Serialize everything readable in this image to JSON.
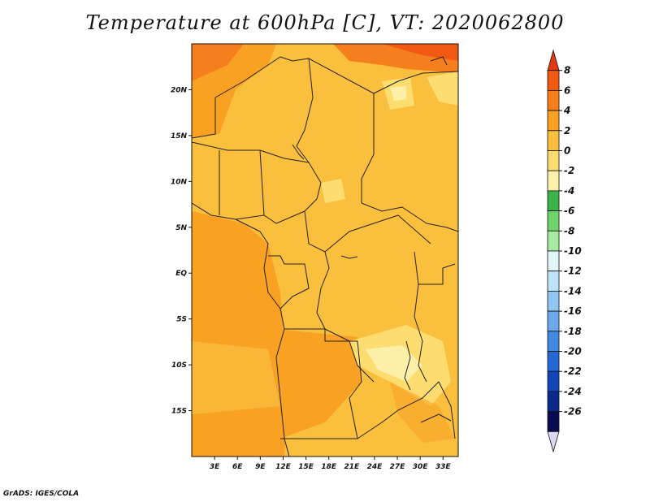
{
  "title": "Temperature at 600hPa [C], VT: 2020062800",
  "credit": "GrADS: IGES/COLA",
  "map": {
    "lon_range": [
      0,
      35
    ],
    "lat_range": [
      -20,
      25
    ],
    "x_ticks": [
      "3E",
      "6E",
      "9E",
      "12E",
      "15E",
      "18E",
      "21E",
      "24E",
      "27E",
      "30E",
      "33E"
    ],
    "x_tick_values": [
      3,
      6,
      9,
      12,
      15,
      18,
      21,
      24,
      27,
      30,
      33
    ],
    "y_ticks": [
      "20N",
      "15N",
      "10N",
      "5N",
      "EQ",
      "5S",
      "10S",
      "15S"
    ],
    "y_tick_values": [
      20,
      15,
      10,
      5,
      0,
      -5,
      -10,
      -15
    ]
  },
  "colorbar": {
    "labels": [
      "8",
      "6",
      "4",
      "2",
      "0",
      "-2",
      "-4",
      "-6",
      "-8",
      "-10",
      "-12",
      "-14",
      "-16",
      "-18",
      "-20",
      "-22",
      "-24",
      "-26"
    ],
    "colors": [
      "#e03a10",
      "#f25a14",
      "#f57f1c",
      "#f8a122",
      "#fbbf3e",
      "#fddc70",
      "#fef0a8",
      "#3ab34a",
      "#6fd36a",
      "#a8eaa0",
      "#e2f6f8",
      "#bde3f8",
      "#92c6f2",
      "#6aa8ea",
      "#4489e0",
      "#2468d4",
      "#1046b8",
      "#0a2a8a",
      "#0a0a50",
      "#dcd6f2"
    ]
  },
  "field_colors": {
    "warm": "#f8a122",
    "mild": "#fbbf3e",
    "cool": "#fddc70",
    "coolest": "#fef0a8",
    "hot": "#f57f1c",
    "hottest": "#f25a14"
  }
}
